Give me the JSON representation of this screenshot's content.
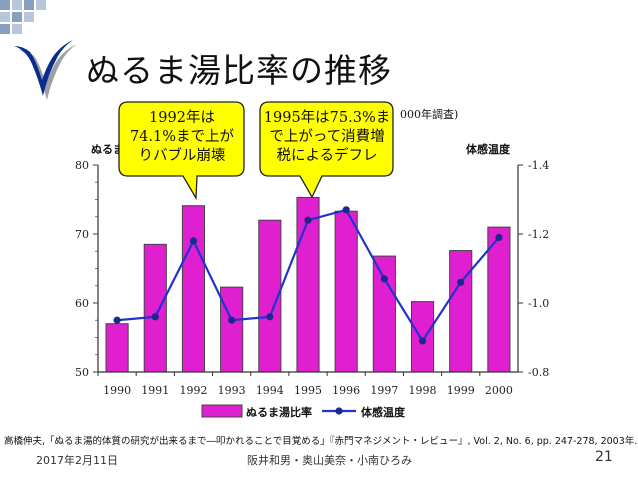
{
  "slide": {
    "title": "ぬるま湯比率の推移",
    "callouts": [
      {
        "lines": [
          "1992年は",
          "74.1%まで上が",
          "りバブル崩壊"
        ]
      },
      {
        "lines": [
          "1995年は75.3%ま",
          "で上がって消費増",
          "税によるデフレ"
        ]
      }
    ],
    "citation": "高橋伸夫,「ぬるま湯的体質の研究が出来るまで―叩かれることで目覚める」『赤門マネジメント・レビュー』, Vol. 2, No. 6, pp. 247-278, 2003年.",
    "footer": {
      "date": "2017年2月11日",
      "authors": "阪井和男・奥山美奈・小南ひろみ",
      "page": "21"
    },
    "colors": {
      "accent": "#0a2d8c",
      "logo_shadow": "#9aa0a6"
    }
  },
  "chart_data": {
    "type": "bar",
    "partial_title": "000年調査)",
    "categories": [
      "1990",
      "1991",
      "1992",
      "1993",
      "1994",
      "1995",
      "1996",
      "1997",
      "1998",
      "1999",
      "2000"
    ],
    "series": [
      {
        "name": "ぬるま湯比率",
        "kind": "bar",
        "axis": "left",
        "color": "#e020d0",
        "values": [
          57.0,
          68.5,
          74.1,
          62.3,
          72.0,
          75.3,
          73.3,
          66.8,
          60.2,
          67.6,
          71.0
        ]
      },
      {
        "name": "体感温度",
        "kind": "line",
        "axis": "right",
        "color": "#2233cc",
        "values": [
          -0.95,
          -0.96,
          -1.18,
          -0.95,
          -0.96,
          -1.24,
          -1.27,
          -1.07,
          -0.89,
          -1.06,
          -1.19
        ]
      }
    ],
    "y_left": {
      "label": "ぬるま湯",
      "ticks": [
        "80",
        "70",
        "60",
        "50"
      ],
      "lim": [
        50,
        80
      ]
    },
    "y_right": {
      "label": "体感温度",
      "ticks": [
        "-1.4",
        "-1.2",
        "-1.0",
        "-0.8"
      ],
      "lim": [
        -1.4,
        -0.8
      ]
    },
    "legend": {
      "position": "bottom"
    }
  }
}
